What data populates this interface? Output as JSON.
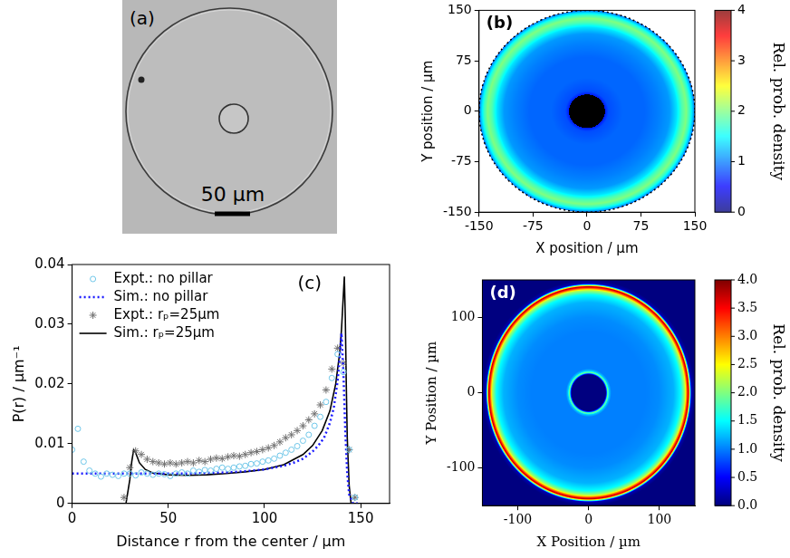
{
  "chart_data": [
    {
      "type": "image",
      "panel": "(a)",
      "scale_bar": "50 µm"
    },
    {
      "type": "heatmap",
      "panel": "(b)",
      "xlabel": "X position / µm",
      "ylabel": "Y position / µm",
      "xlim": [
        -150,
        150
      ],
      "ylim": [
        -150,
        150
      ],
      "xticks": [
        -150,
        -75,
        0,
        75,
        150
      ],
      "yticks": [
        -150,
        -75,
        0,
        75,
        150
      ],
      "grid": false,
      "pillar": {
        "radius": 25,
        "color": "#000000"
      },
      "radial_profile": {
        "r": [
          25,
          30,
          50,
          80,
          100,
          115,
          125,
          132,
          138,
          143,
          148,
          150
        ],
        "values": [
          0.6,
          0.8,
          0.9,
          0.9,
          1.0,
          1.1,
          1.4,
          1.8,
          2.0,
          1.7,
          1.2,
          0.9
        ]
      },
      "colorbar": {
        "label": "Rel. prob. density",
        "range": [
          0,
          4
        ],
        "ticks": [
          0,
          1,
          2,
          3,
          4
        ]
      }
    },
    {
      "type": "line",
      "panel": "(c)",
      "xlabel": "Distance r from the center / µm",
      "ylabel": "P(r) / µm⁻¹",
      "xlim": [
        0,
        165
      ],
      "ylim": [
        0,
        0.04
      ],
      "xticks": [
        0,
        50,
        100,
        150
      ],
      "yticks": [
        0,
        0.01,
        0.02,
        0.03,
        0.04
      ],
      "grid": false,
      "legend": "upper left",
      "series": [
        {
          "name": "Expt.: no pillar",
          "type": "scatter",
          "marker": "circle",
          "color": "#6ec6e8",
          "x": [
            0,
            3,
            6,
            9,
            12,
            15,
            18,
            21,
            24,
            27,
            30,
            33,
            36,
            39,
            42,
            45,
            48,
            51,
            54,
            57,
            60,
            63,
            66,
            69,
            72,
            75,
            78,
            81,
            84,
            87,
            90,
            93,
            96,
            99,
            102,
            105,
            108,
            111,
            114,
            117,
            120,
            123,
            126,
            129,
            132,
            135,
            138,
            141,
            144,
            147
          ],
          "values": [
            0.009,
            0.0125,
            0.007,
            0.0055,
            0.005,
            0.0045,
            0.005,
            0.0048,
            0.0046,
            0.005,
            0.005,
            0.0047,
            0.0052,
            0.005,
            0.0048,
            0.005,
            0.0049,
            0.0046,
            0.005,
            0.0052,
            0.005,
            0.0055,
            0.0053,
            0.0056,
            0.0055,
            0.0058,
            0.006,
            0.0058,
            0.006,
            0.0062,
            0.0063,
            0.0066,
            0.0067,
            0.007,
            0.0072,
            0.0075,
            0.008,
            0.0085,
            0.009,
            0.0096,
            0.0105,
            0.0115,
            0.013,
            0.0145,
            0.017,
            0.021,
            0.025,
            0.022,
            0.009,
            0.001
          ]
        },
        {
          "name": "Sim.: no pillar",
          "type": "line",
          "line_style": "dotted",
          "color": "#1a1aff",
          "x": [
            0,
            20,
            40,
            60,
            80,
            90,
            100,
            110,
            115,
            120,
            125,
            128,
            131,
            134,
            136,
            138,
            139,
            140,
            141,
            142,
            143,
            144,
            146,
            150
          ],
          "values": [
            0.005,
            0.005,
            0.005,
            0.005,
            0.0052,
            0.0054,
            0.0057,
            0.0063,
            0.0068,
            0.0075,
            0.0087,
            0.0097,
            0.011,
            0.0135,
            0.016,
            0.0205,
            0.024,
            0.0285,
            0.022,
            0.012,
            0.005,
            0.0015,
            0,
            0
          ]
        },
        {
          "name": "Expt.: rₚ=25µm",
          "type": "scatter",
          "marker": "asterisk",
          "color": "#707070",
          "x": [
            27,
            30,
            33,
            36,
            39,
            42,
            45,
            48,
            51,
            54,
            57,
            60,
            63,
            66,
            69,
            72,
            75,
            78,
            81,
            84,
            87,
            90,
            93,
            96,
            99,
            102,
            105,
            108,
            111,
            114,
            117,
            120,
            123,
            126,
            129,
            132,
            135,
            138,
            141,
            144,
            147
          ],
          "values": [
            0.001,
            0.006,
            0.0088,
            0.0082,
            0.0074,
            0.007,
            0.0068,
            0.0066,
            0.0068,
            0.0066,
            0.0068,
            0.007,
            0.0068,
            0.0072,
            0.007,
            0.0074,
            0.0076,
            0.0075,
            0.0078,
            0.008,
            0.0079,
            0.0082,
            0.0085,
            0.0087,
            0.009,
            0.0093,
            0.0097,
            0.0103,
            0.011,
            0.0115,
            0.0122,
            0.013,
            0.014,
            0.015,
            0.0165,
            0.019,
            0.0225,
            0.026,
            0.0235,
            0.009,
            0.001
          ]
        },
        {
          "name": "Sim.: rₚ=25µm",
          "type": "line",
          "line_style": "solid",
          "color": "#000000",
          "x": [
            0,
            25,
            28,
            30,
            31,
            32,
            33,
            35,
            38,
            42,
            50,
            60,
            70,
            80,
            90,
            100,
            110,
            120,
            125,
            130,
            134,
            137,
            139,
            140,
            141,
            141.5,
            142,
            142.5,
            143,
            144,
            145,
            150
          ],
          "values": [
            0,
            0,
            0,
            0.004,
            0.007,
            0.009,
            0.0085,
            0.0068,
            0.0057,
            0.0051,
            0.0048,
            0.0047,
            0.0048,
            0.005,
            0.0053,
            0.0057,
            0.0065,
            0.0082,
            0.0097,
            0.0122,
            0.0155,
            0.02,
            0.025,
            0.029,
            0.035,
            0.038,
            0.031,
            0.02,
            0.011,
            0.003,
            0,
            0
          ]
        }
      ]
    },
    {
      "type": "heatmap",
      "panel": "(d)",
      "xlabel": "X Position / µm",
      "ylabel": "Y Position / µm",
      "xlim": [
        -150,
        150
      ],
      "ylim": [
        -150,
        150
      ],
      "xticks": [
        -100,
        0,
        100
      ],
      "yticks": [
        -100,
        0,
        100
      ],
      "grid": false,
      "radial_profile": {
        "r": [
          0,
          24,
          25,
          27,
          29,
          32,
          50,
          80,
          100,
          120,
          130,
          136,
          139,
          141,
          143,
          145,
          150,
          213
        ],
        "values": [
          0,
          0,
          0.5,
          2.0,
          1.3,
          1.0,
          1.0,
          1.0,
          1.05,
          1.2,
          1.5,
          2.2,
          3.2,
          3.8,
          2.0,
          0.2,
          0,
          0
        ]
      },
      "colorbar": {
        "label": "Rel. prob. density",
        "range": [
          0,
          4
        ],
        "ticks": [
          {
            "value": 0,
            "label": "0.0"
          },
          {
            "value": 0.5,
            "label": "0.5"
          },
          {
            "value": 1,
            "label": "1.0"
          },
          {
            "value": 1.5,
            "label": "1.5"
          },
          {
            "value": 2,
            "label": "2.0"
          },
          {
            "value": 2.5,
            "label": "2.5"
          },
          {
            "value": 3,
            "label": "3.0"
          },
          {
            "value": 3.5,
            "label": "3.5"
          },
          {
            "value": 4,
            "label": "4.0"
          }
        ]
      }
    }
  ]
}
